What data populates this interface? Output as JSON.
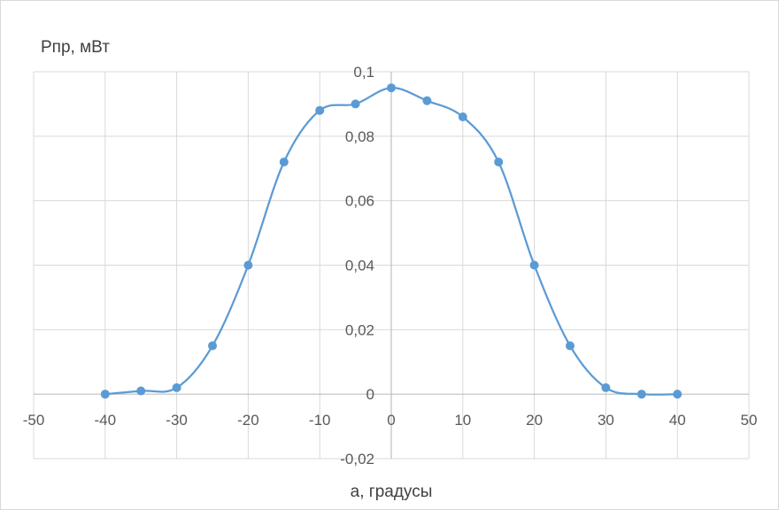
{
  "chart_data": {
    "type": "scatter",
    "title": "",
    "xlabel": "а, градусы",
    "ylabel": "Pпр, мВт",
    "xlim": [
      -50,
      50
    ],
    "ylim": [
      -0.02,
      0.1
    ],
    "x_ticks": [
      -50,
      -40,
      -30,
      -20,
      -10,
      0,
      10,
      20,
      30,
      40,
      50
    ],
    "y_ticks": [
      -0.02,
      0,
      0.02,
      0.04,
      0.06,
      0.08,
      0.1
    ],
    "x_tick_labels": [
      "-50",
      "-40",
      "-30",
      "-20",
      "-10",
      "0",
      "10",
      "20",
      "30",
      "40",
      "50"
    ],
    "y_tick_labels": [
      "-0,02",
      "0",
      "0,02",
      "0,04",
      "0,06",
      "0,08",
      "0,1"
    ],
    "grid": true,
    "smooth_line": true,
    "series": [
      {
        "color": "#5b9bd5",
        "x": [
          -40,
          -35,
          -30,
          -25,
          -20,
          -15,
          -10,
          -5,
          0,
          5,
          10,
          15,
          20,
          25,
          30,
          35,
          40
        ],
        "y": [
          0,
          0.001,
          0.002,
          0.015,
          0.04,
          0.072,
          0.088,
          0.09,
          0.095,
          0.091,
          0.086,
          0.072,
          0.04,
          0.015,
          0.002,
          0,
          0
        ]
      }
    ]
  }
}
